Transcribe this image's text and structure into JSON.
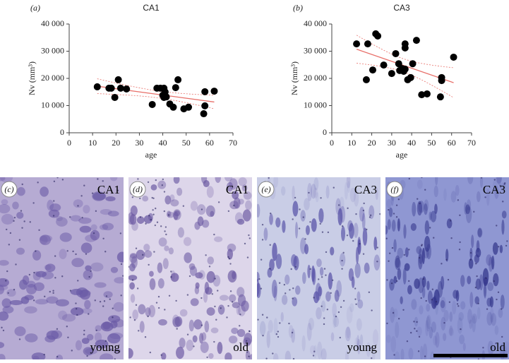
{
  "chart_data": [
    {
      "type": "scatter",
      "panel_label": "(a)",
      "title": "CA1",
      "xlabel": "age",
      "ylabel": "Nv (mm³)",
      "color": "#000000",
      "fit_color": "#e8706a",
      "x": [
        12,
        17,
        18,
        19.5,
        21,
        22,
        24.5,
        35.5,
        37.5,
        39,
        40,
        40.5,
        41,
        40.5,
        41.5,
        43,
        44.5,
        45.5,
        46.5,
        49,
        51,
        57.5,
        58,
        58,
        62
      ],
      "values": [
        16900,
        16400,
        16400,
        13000,
        19500,
        16400,
        16100,
        10400,
        16400,
        16400,
        13800,
        16400,
        15000,
        13000,
        13200,
        10600,
        9400,
        16600,
        19500,
        8800,
        9400,
        7000,
        9900,
        15100,
        15300
      ],
      "xlim": [
        0,
        70
      ],
      "xticks": [
        0,
        10,
        20,
        30,
        40,
        50,
        60,
        70
      ],
      "ylim": [
        0,
        40000
      ],
      "yticks": [
        0,
        {
          "value": 10000,
          "label": "10 000"
        },
        {
          "value": 20000,
          "label": "20 000"
        },
        {
          "value": 30000,
          "label": "30 000"
        },
        {
          "value": 40000,
          "label": "40 000"
        }
      ]
    },
    {
      "type": "scatter",
      "panel_label": "(b)",
      "title": "CA3",
      "xlabel": "age",
      "ylabel": "Nv (mm³)",
      "color": "#000000",
      "fit_color": "#e8706a",
      "x": [
        12.4,
        17.3,
        18,
        20.5,
        22,
        23,
        26,
        30,
        32,
        33.5,
        34,
        35.3,
        36,
        36.7,
        36.7,
        36.7,
        38,
        39.5,
        40.5,
        42.4,
        45,
        47.7,
        54.4,
        55,
        55,
        61
      ],
      "values": [
        32700,
        19500,
        32700,
        23100,
        36400,
        35600,
        24900,
        21800,
        29100,
        25400,
        22900,
        23600,
        22600,
        32700,
        31200,
        23400,
        19500,
        20300,
        25400,
        34000,
        14000,
        14300,
        13200,
        19200,
        20300,
        27800
      ],
      "xlim": [
        0,
        70
      ],
      "xticks": [
        0,
        10,
        20,
        30,
        40,
        50,
        60,
        70
      ],
      "ylim": [
        0,
        40000
      ],
      "yticks": [
        0,
        {
          "value": 10000,
          "label": "10 000"
        },
        {
          "value": 20000,
          "label": "20 000"
        },
        {
          "value": 30000,
          "label": "30 000"
        },
        {
          "value": 40000,
          "label": "40 000"
        }
      ]
    }
  ],
  "images": [
    {
      "label": "(c)",
      "region": "CA1",
      "group": "young"
    },
    {
      "label": "(d)",
      "region": "CA1",
      "group": "old"
    },
    {
      "label": "(e)",
      "region": "CA3",
      "group": "young"
    },
    {
      "label": "(f)",
      "region": "CA3",
      "group": "old"
    }
  ]
}
